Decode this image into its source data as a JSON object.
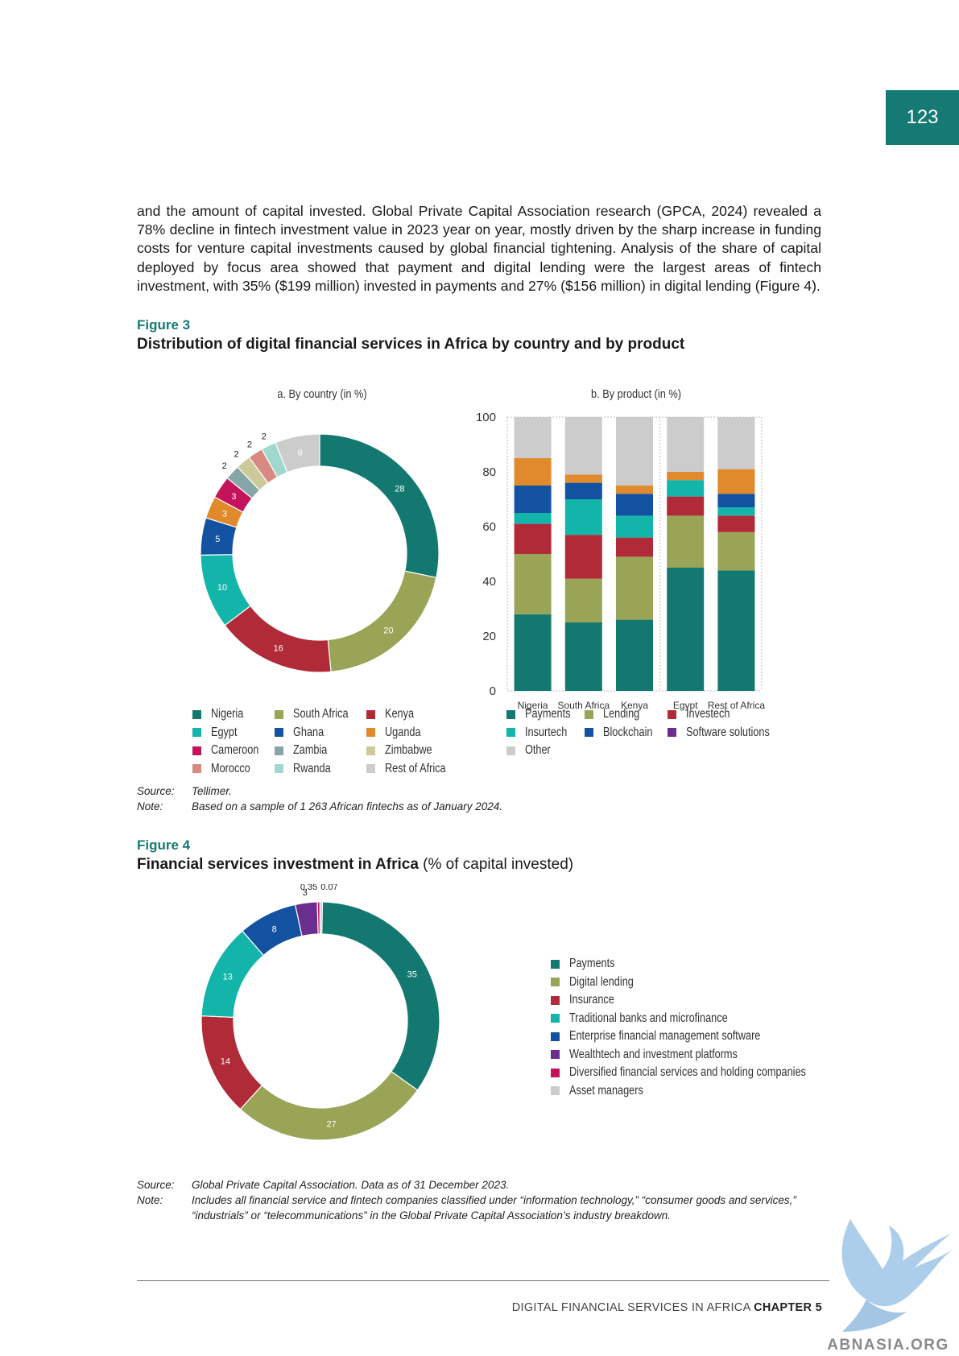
{
  "page_number": "123",
  "intro_text": "and the amount of capital invested. Global Private Capital Association research (GPCA, 2024) revealed a 78% decline in fintech investment value in 2023 year on year, mostly driven by the sharp increase in funding costs for venture capital investments caused by global financial tightening. Analysis of the share of capital deployed by focus area showed that payment and digital lending were the largest areas of fintech investment, with 35% ($199 million) invested in payments and 27% ($156 million) in digital lending (Figure 4).",
  "figure3": {
    "label": "Figure 3",
    "title": "Distribution of digital financial services in Africa by country and by product",
    "source_key": "Source:",
    "source": "Tellimer.",
    "note_key": "Note:",
    "note": "Based on a sample of 1 263 African fintechs as of January 2024."
  },
  "figure4": {
    "label": "Figure 4",
    "title": "Financial services investment in Africa",
    "title_suffix": "(% of capital invested)",
    "source_key": "Source:",
    "source": "Global Private Capital Association. Data as of 31 December 2023.",
    "note_key": "Note:",
    "note": "Includes all financial service and fintech companies classified under “information technology,” “consumer goods and services,” “industrials” or “telecommunications” in the Global Private Capital Association’s industry breakdown."
  },
  "chart_data": [
    {
      "type": "pie",
      "variant": "donut",
      "title": "a. By country (in %)",
      "categories": [
        "Nigeria",
        "South Africa",
        "Kenya",
        "Egypt",
        "Ghana",
        "Uganda",
        "Cameroon",
        "Zambia",
        "Zimbabwe",
        "Morocco",
        "Rwanda",
        "Rest of Africa"
      ],
      "values": [
        28,
        20,
        16,
        10,
        5,
        3,
        3,
        2,
        2,
        2,
        2,
        6
      ],
      "colors": [
        "#137870",
        "#99a457",
        "#b02a37",
        "#13b5aa",
        "#1352a0",
        "#e08a2c",
        "#c4125b",
        "#86a5a6",
        "#ccc99a",
        "#d88a82",
        "#a0d8cf",
        "#cccccc"
      ],
      "legend": "bottom",
      "legend_order": [
        "Nigeria",
        "South Africa",
        "Kenya",
        "Egypt",
        "Ghana",
        "Uganda",
        "Cameroon",
        "Zambia",
        "Zimbabwe",
        "Morocco",
        "Rwanda",
        "Rest of Africa"
      ]
    },
    {
      "type": "bar",
      "stacked": true,
      "title": "b. By product (in %)",
      "categories": [
        "Nigeria",
        "South Africa",
        "Kenya",
        "Egypt",
        "Rest of Africa"
      ],
      "ylim": [
        0,
        100
      ],
      "yticks": [
        0,
        20,
        40,
        60,
        80,
        100
      ],
      "series": [
        {
          "name": "Payments",
          "color": "#137870",
          "values": [
            28,
            25,
            26,
            45,
            44
          ]
        },
        {
          "name": "Lending",
          "color": "#99a457",
          "values": [
            22,
            16,
            23,
            19,
            14
          ]
        },
        {
          "name": "Investech",
          "color": "#b02a37",
          "values": [
            11,
            16,
            7,
            7,
            6
          ]
        },
        {
          "name": "Insurtech",
          "color": "#13b5aa",
          "values": [
            4,
            13,
            8,
            6,
            3
          ]
        },
        {
          "name": "Blockchain",
          "color": "#1352a0",
          "values": [
            10,
            6,
            8,
            0,
            5
          ]
        },
        {
          "name": "Software solutions",
          "color": "#6b2e8f",
          "values": [
            0,
            0,
            0,
            0,
            0
          ]
        },
        {
          "name": "Other-orange",
          "color": "#e08a2c",
          "values": [
            10,
            3,
            3,
            3,
            9
          ]
        },
        {
          "name": "Other",
          "color": "#cccccc",
          "values": [
            15,
            21,
            25,
            20,
            19
          ]
        }
      ],
      "legend": "bottom",
      "legend_items": [
        {
          "name": "Payments",
          "color": "#137870"
        },
        {
          "name": "Lending",
          "color": "#99a457"
        },
        {
          "name": "Investech",
          "color": "#b02a37"
        },
        {
          "name": "Insurtech",
          "color": "#13b5aa"
        },
        {
          "name": "Blockchain",
          "color": "#1352a0"
        },
        {
          "name": "Software solutions",
          "color": "#6b2e8f"
        },
        {
          "name": "Other",
          "color": "#cccccc"
        }
      ]
    },
    {
      "type": "pie",
      "variant": "donut",
      "title": "",
      "categories": [
        "Payments",
        "Digital lending",
        "Insurance",
        "Traditional banks and microfinance",
        "Enterprise financial management software",
        "Wealthtech and investment platforms",
        "Diversified financial services and holding companies",
        "Asset managers"
      ],
      "values": [
        35,
        27,
        14,
        13,
        8,
        3,
        0.35,
        0.07
      ],
      "labels": [
        "35",
        "27",
        "14",
        "13",
        "8",
        "3",
        "0.35",
        "0.07"
      ],
      "colors": [
        "#137870",
        "#99a457",
        "#b02a37",
        "#13b5aa",
        "#1352a0",
        "#6b2e8f",
        "#c4125b",
        "#cccccc"
      ],
      "legend": "right"
    }
  ],
  "footer": {
    "text": "DIGITAL FINANCIAL SERVICES IN AFRICA",
    "chapter": "CHAPTER 5"
  },
  "watermark_text": "ABNASIA.ORG"
}
